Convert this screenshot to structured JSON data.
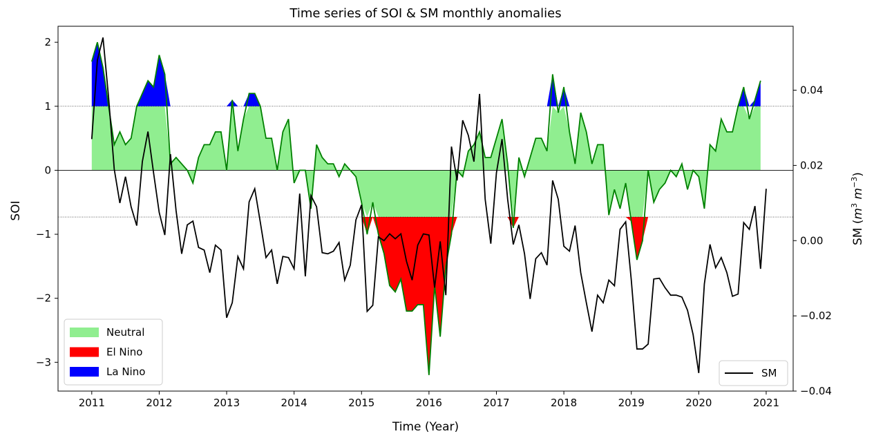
{
  "chart_data": {
    "type": "area",
    "title": "Time series of SOI & SM monthly anomalies",
    "xlabel": "Time (Year)",
    "ylabel": "SOI",
    "ylabel_right": "SM (m³ m⁻³)",
    "ylabel_right_parts": {
      "prefix": "SM (",
      "m1": "m",
      "e1": "3",
      "m2": " m",
      "e2": "−3",
      "suffix": ")"
    },
    "xlim": [
      2010.5,
      2021.4
    ],
    "ylim": [
      -3.45,
      2.25
    ],
    "ylim_right": [
      -0.04,
      0.057
    ],
    "xticks": [
      2011,
      2012,
      2013,
      2014,
      2015,
      2016,
      2017,
      2018,
      2019,
      2020,
      2021
    ],
    "xtick_labels": [
      "2011",
      "2012",
      "2013",
      "2014",
      "2015",
      "2016",
      "2017",
      "2018",
      "2019",
      "2020",
      "2021"
    ],
    "yticks": [
      -3,
      -2,
      -1,
      0,
      1,
      2
    ],
    "ytick_labels": [
      "−3",
      "−2",
      "−1",
      "0",
      "1",
      "2"
    ],
    "yticks_right": [
      -0.04,
      -0.02,
      0.0,
      0.02,
      0.04
    ],
    "ytick_right_labels": [
      "−0.04",
      "−0.02",
      "0.00",
      "0.02",
      "0.04"
    ],
    "thresholds": {
      "la_nina": 1.0,
      "el_nino": -0.73,
      "zero": 0
    },
    "colors": {
      "neutral": "#90ee90",
      "el_nino": "#ff0000",
      "la_nina": "#0000ff",
      "soi_line": "#008000",
      "sm_line": "#000000"
    },
    "legend_left": {
      "placement": "lower-left",
      "entries": [
        "Neutral",
        "El Nino",
        "La Nino"
      ]
    },
    "legend_right": {
      "placement": "lower-right",
      "entries": [
        "SM"
      ]
    },
    "series": [
      {
        "name": "SOI",
        "start": 2011,
        "step_months": 1,
        "values": [
          1.7,
          2.0,
          1.6,
          1.0,
          0.4,
          0.6,
          0.4,
          0.5,
          1.0,
          1.2,
          1.4,
          1.3,
          1.8,
          1.5,
          0.1,
          0.2,
          0.1,
          0.0,
          -0.2,
          0.2,
          0.4,
          0.4,
          0.6,
          0.6,
          0.0,
          1.1,
          0.3,
          0.8,
          1.2,
          1.2,
          1.0,
          0.5,
          0.5,
          0.0,
          0.6,
          0.8,
          -0.2,
          0.0,
          0.0,
          -0.6,
          0.4,
          0.2,
          0.1,
          0.1,
          -0.1,
          0.1,
          0.0,
          -0.1,
          -0.5,
          -1.0,
          -0.5,
          -1.0,
          -1.3,
          -1.8,
          -1.9,
          -1.7,
          -2.2,
          -2.2,
          -2.1,
          -2.1,
          -3.2,
          -1.8,
          -2.6,
          -1.5,
          -1.0,
          0.0,
          -0.1,
          0.3,
          0.4,
          0.6,
          0.2,
          0.2,
          0.5,
          0.8,
          0.1,
          -0.9,
          0.2,
          -0.1,
          0.2,
          0.5,
          0.5,
          0.3,
          1.5,
          0.9,
          1.3,
          0.6,
          0.1,
          0.9,
          0.6,
          0.1,
          0.4,
          0.4,
          -0.7,
          -0.3,
          -0.6,
          -0.2,
          -0.8,
          -1.4,
          -1.1,
          0.0,
          -0.5,
          -0.3,
          -0.2,
          0.0,
          -0.1,
          0.1,
          -0.3,
          0.0,
          -0.1,
          -0.6,
          0.4,
          0.3,
          0.8,
          0.6,
          0.6,
          1.0,
          1.3,
          0.8,
          1.1,
          1.4
        ]
      },
      {
        "name": "SM",
        "start": 2011,
        "step_months": 1,
        "values": [
          0.027,
          0.048,
          0.054,
          0.038,
          0.019,
          0.01,
          0.017,
          0.009,
          0.004,
          0.021,
          0.029,
          0.018,
          0.0075,
          0.0015,
          0.023,
          0.008,
          -0.0035,
          0.0042,
          0.0052,
          -0.0018,
          -0.0025,
          -0.0085,
          -0.0012,
          -0.0025,
          -0.0205,
          -0.0165,
          -0.0042,
          -0.0075,
          0.0103,
          0.0138,
          0.0048,
          -0.0045,
          -0.0025,
          -0.0115,
          -0.0042,
          -0.0045,
          -0.0075,
          0.0125,
          -0.0095,
          0.012,
          0.009,
          -0.0032,
          -0.0035,
          -0.0028,
          -0.0005,
          -0.0105,
          -0.0065,
          0.0055,
          0.0095,
          -0.0188,
          -0.0172,
          0.001,
          -0.0,
          0.0018,
          0.0005,
          0.0018,
          -0.0055,
          -0.0105,
          -0.0012,
          0.0018,
          0.0015,
          -0.0125,
          -0.0002,
          -0.0145,
          0.025,
          0.016,
          0.032,
          0.028,
          0.021,
          0.039,
          0.011,
          -0.0008,
          0.018,
          0.027,
          0.011,
          -0.001,
          0.0042,
          -0.0035,
          -0.0155,
          -0.0048,
          -0.0032,
          -0.0065,
          0.016,
          0.011,
          -0.0015,
          -0.0028,
          0.004,
          -0.0085,
          -0.0165,
          -0.0242,
          -0.0145,
          -0.0165,
          -0.0105,
          -0.012,
          0.003,
          0.005,
          -0.0105,
          -0.0288,
          -0.0288,
          -0.0275,
          -0.0102,
          -0.01,
          -0.0125,
          -0.0145,
          -0.0145,
          -0.015,
          -0.0185,
          -0.025,
          -0.0352,
          -0.0115,
          -0.001,
          -0.0072,
          -0.0045,
          -0.0085,
          -0.0148,
          -0.0142,
          0.0048,
          0.003,
          0.0092,
          -0.0075,
          0.0138
        ]
      }
    ]
  }
}
